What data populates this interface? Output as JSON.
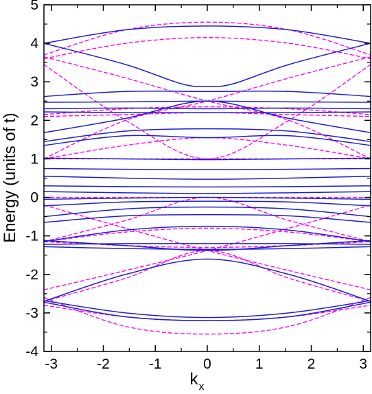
{
  "chart_data": {
    "type": "line",
    "xlabel": "k",
    "xlabel_subscript": "x",
    "ylabel": "Energy  (units of t)",
    "xlim": [
      -3.14159,
      3.14159
    ],
    "ylim": [
      -4,
      5
    ],
    "x_ticks": [
      -3,
      -2,
      -1,
      0,
      1,
      2,
      3
    ],
    "y_ticks": [
      -4,
      -3,
      -2,
      -1,
      0,
      1,
      2,
      3,
      4,
      5
    ],
    "x_tick_labels": [
      "-3",
      "-2",
      "-1",
      "0",
      "1",
      "2",
      "3"
    ],
    "y_tick_labels": [
      "-4",
      "-3",
      "-2",
      "-1",
      "0",
      "1",
      "2",
      "3",
      "4",
      "5"
    ],
    "grid": false,
    "legend": null,
    "colors": {
      "solid": "#1f1fcf",
      "dashed": "#ff00ff"
    },
    "series": [
      {
        "style": "solid",
        "color": "#1f1fcf",
        "x": [
          -3.14159,
          -1.5708,
          0,
          1.5708,
          3.14159
        ],
        "values": [
          4.0,
          4.35,
          4.45,
          4.35,
          4.0
        ]
      },
      {
        "style": "solid",
        "color": "#1f1fcf",
        "x": [
          -3.14159,
          -1.5708,
          -0.5,
          0,
          0.5,
          1.5708,
          3.14159
        ],
        "values": [
          4.0,
          3.45,
          2.95,
          2.88,
          2.95,
          3.45,
          4.0
        ]
      },
      {
        "style": "solid",
        "color": "#1f1fcf",
        "x": [
          -3.14159,
          -1.5708,
          0,
          1.5708,
          3.14159
        ],
        "values": [
          2.62,
          2.75,
          2.75,
          2.75,
          2.62
        ]
      },
      {
        "style": "solid",
        "color": "#1f1fcf",
        "x": [
          -3.14159,
          -1.5708,
          0,
          1.5708,
          3.14159
        ],
        "values": [
          2.47,
          2.48,
          2.5,
          2.48,
          2.47
        ]
      },
      {
        "style": "solid",
        "color": "#1f1fcf",
        "x": [
          -3.14159,
          -1.5708,
          0,
          1.5708,
          3.14159
        ],
        "values": [
          2.3,
          2.32,
          2.3,
          2.32,
          2.3
        ]
      },
      {
        "style": "solid",
        "color": "#1f1fcf",
        "x": [
          -3.14159,
          -1.5708,
          0,
          1.5708,
          3.14159
        ],
        "values": [
          2.22,
          2.2,
          2.2,
          2.2,
          2.22
        ]
      },
      {
        "style": "solid",
        "color": "#1f1fcf",
        "x": [
          -3.14159,
          -1.5708,
          0,
          1.5708,
          3.14159
        ],
        "values": [
          1.68,
          2.05,
          2.5,
          2.05,
          1.68
        ]
      },
      {
        "style": "solid",
        "color": "#1f1fcf",
        "x": [
          -3.14159,
          -1.5708,
          0,
          1.5708,
          3.14159
        ],
        "values": [
          1.45,
          1.72,
          1.78,
          1.72,
          1.45
        ]
      },
      {
        "style": "solid",
        "color": "#1f1fcf",
        "x": [
          -3.14159,
          -1.5708,
          0,
          1.5708,
          3.14159
        ],
        "values": [
          1.35,
          1.6,
          1.55,
          1.6,
          1.35
        ]
      },
      {
        "style": "solid",
        "color": "#1f1fcf",
        "x": [
          -3.14159,
          -1.5708,
          0,
          1.5708,
          3.14159
        ],
        "values": [
          1.02,
          1.0,
          0.98,
          1.0,
          1.02
        ]
      },
      {
        "style": "solid",
        "color": "#1f1fcf",
        "x": [
          -3.14159,
          -1.5708,
          0,
          1.5708,
          3.14159
        ],
        "values": [
          0.75,
          0.73,
          0.72,
          0.73,
          0.75
        ]
      },
      {
        "style": "solid",
        "color": "#1f1fcf",
        "x": [
          -3.14159,
          -1.5708,
          0,
          1.5708,
          3.14159
        ],
        "values": [
          0.55,
          0.5,
          0.47,
          0.5,
          0.55
        ]
      },
      {
        "style": "solid",
        "color": "#1f1fcf",
        "x": [
          -3.14159,
          -1.5708,
          0,
          1.5708,
          3.14159
        ],
        "values": [
          0.3,
          0.28,
          0.27,
          0.28,
          0.3
        ]
      },
      {
        "style": "solid",
        "color": "#1f1fcf",
        "x": [
          -3.14159,
          -1.5708,
          0,
          1.5708,
          3.14159
        ],
        "values": [
          0.15,
          0.12,
          0.1,
          0.12,
          0.15
        ]
      },
      {
        "style": "solid",
        "color": "#1f1fcf",
        "x": [
          -3.14159,
          -1.5708,
          0,
          1.5708,
          3.14159
        ],
        "values": [
          -0.05,
          -0.02,
          0.0,
          -0.02,
          -0.05
        ]
      },
      {
        "style": "solid",
        "color": "#1f1fcf",
        "x": [
          -3.14159,
          -1.5708,
          0,
          1.5708,
          3.14159
        ],
        "values": [
          -0.22,
          -0.12,
          -0.1,
          -0.12,
          -0.22
        ]
      },
      {
        "style": "solid",
        "color": "#1f1fcf",
        "x": [
          -3.14159,
          -1.5708,
          0,
          1.5708,
          3.14159
        ],
        "values": [
          -0.5,
          -0.3,
          -0.25,
          -0.3,
          -0.5
        ]
      },
      {
        "style": "solid",
        "color": "#1f1fcf",
        "x": [
          -3.14159,
          -1.5708,
          0,
          1.5708,
          3.14159
        ],
        "values": [
          -0.65,
          -0.48,
          -0.45,
          -0.48,
          -0.65
        ]
      },
      {
        "style": "solid",
        "color": "#1f1fcf",
        "x": [
          -3.14159,
          -1.5708,
          0,
          1.5708,
          3.14159
        ],
        "values": [
          -1.15,
          -0.85,
          -0.75,
          -0.85,
          -1.15
        ]
      },
      {
        "style": "solid",
        "color": "#1f1fcf",
        "x": [
          -3.14159,
          -1.5708,
          0,
          1.5708,
          3.14159
        ],
        "values": [
          -1.12,
          -1.25,
          -1.38,
          -1.25,
          -1.12
        ]
      },
      {
        "style": "solid",
        "color": "#1f1fcf",
        "x": [
          -3.14159,
          -1.5708,
          0,
          1.5708,
          3.14159
        ],
        "values": [
          -1.22,
          -1.2,
          -1.2,
          -1.2,
          -1.22
        ]
      },
      {
        "style": "solid",
        "color": "#1f1fcf",
        "x": [
          -3.14159,
          -1.5708,
          0,
          1.5708,
          3.14159
        ],
        "values": [
          -1.28,
          -1.33,
          -1.35,
          -1.33,
          -1.28
        ]
      },
      {
        "style": "solid",
        "color": "#1f1fcf",
        "x": [
          -3.14159,
          -1.5708,
          0,
          1.5708,
          3.14159
        ],
        "values": [
          -2.7,
          -2.0,
          -1.6,
          -2.0,
          -2.7
        ]
      },
      {
        "style": "solid",
        "color": "#1f1fcf",
        "x": [
          -3.14159,
          -1.5708,
          0,
          1.5708,
          3.14159
        ],
        "values": [
          -2.68,
          -3.0,
          -3.12,
          -3.0,
          -2.68
        ]
      },
      {
        "style": "solid",
        "color": "#1f1fcf",
        "x": [
          -3.14159,
          -1.5708,
          0,
          1.5708,
          3.14159
        ],
        "values": [
          -2.72,
          -3.1,
          -3.2,
          -3.1,
          -2.72
        ]
      },
      {
        "style": "dashed",
        "color": "#ff00ff",
        "x": [
          -3.14159,
          -1.5708,
          0,
          1.5708,
          3.14159
        ],
        "values": [
          3.7,
          4.35,
          4.55,
          4.35,
          3.7
        ]
      },
      {
        "style": "dashed",
        "color": "#ff00ff",
        "x": [
          -3.14159,
          -1.5708,
          0,
          1.5708,
          3.14159
        ],
        "values": [
          3.6,
          4.0,
          4.15,
          4.0,
          3.6
        ]
      },
      {
        "style": "dashed",
        "color": "#ff00ff",
        "x": [
          -3.14159,
          -1.5708,
          0,
          1.5708,
          3.14159
        ],
        "values": [
          3.45,
          2.0,
          1.0,
          2.0,
          3.45
        ]
      },
      {
        "style": "dashed",
        "color": "#ff00ff",
        "x": [
          -3.14159,
          -1.5708,
          0,
          1.5708,
          3.14159
        ],
        "values": [
          3.65,
          3.1,
          2.5,
          2.0,
          1.0
        ]
      },
      {
        "style": "dashed",
        "color": "#ff00ff",
        "x": [
          -3.14159,
          -1.5708,
          0,
          1.5708,
          3.14159
        ],
        "values": [
          1.0,
          2.0,
          2.5,
          3.1,
          3.65
        ]
      },
      {
        "style": "dashed",
        "color": "#ff00ff",
        "x": [
          -3.14159,
          -1.5708,
          0,
          1.5708,
          3.14159
        ],
        "values": [
          2.15,
          2.3,
          2.35,
          2.3,
          2.15
        ]
      },
      {
        "style": "dashed",
        "color": "#ff00ff",
        "x": [
          -3.14159,
          -1.5708,
          0,
          1.5708,
          3.14159
        ],
        "values": [
          2.1,
          2.15,
          2.2,
          2.15,
          2.1
        ]
      },
      {
        "style": "dashed",
        "color": "#ff00ff",
        "x": [
          -3.14159,
          -1.5708,
          0,
          1.5708,
          3.14159
        ],
        "values": [
          1.0,
          1.35,
          1.55,
          1.35,
          1.0
        ]
      },
      {
        "style": "dashed",
        "color": "#ff00ff",
        "x": [
          -3.14159,
          -1.5708,
          0,
          1.5708,
          3.14159
        ],
        "values": [
          1.0,
          1.0,
          1.0,
          1.0,
          1.0
        ]
      },
      {
        "style": "dashed",
        "color": "#ff00ff",
        "x": [
          -3.14159,
          -1.5708,
          0,
          1.5708,
          3.14159
        ],
        "values": [
          0.0,
          0.0,
          0.0,
          0.0,
          0.0
        ]
      },
      {
        "style": "dashed",
        "color": "#ff00ff",
        "x": [
          -3.14159,
          -1.5708,
          0,
          1.5708,
          3.14159
        ],
        "values": [
          -1.15,
          -0.6,
          0.0,
          -0.6,
          -1.15
        ]
      },
      {
        "style": "dashed",
        "color": "#ff00ff",
        "x": [
          -3.14159,
          -1.5708,
          0,
          1.5708,
          3.14159
        ],
        "values": [
          -1.15,
          -0.9,
          -0.8,
          -0.9,
          -1.15
        ]
      },
      {
        "style": "dashed",
        "color": "#ff00ff",
        "x": [
          -3.14159,
          -1.5708,
          0,
          1.5708,
          3.14159
        ],
        "values": [
          -1.15,
          -1.25,
          -1.3,
          -1.25,
          -1.15
        ]
      },
      {
        "style": "dashed",
        "color": "#ff00ff",
        "x": [
          -3.14159,
          -1.5708,
          0,
          1.5708,
          3.14159
        ],
        "values": [
          -2.4,
          -1.9,
          -1.38,
          -0.8,
          -0.2
        ]
      },
      {
        "style": "dashed",
        "color": "#ff00ff",
        "x": [
          -3.14159,
          -1.5708,
          0,
          1.5708,
          3.14159
        ],
        "values": [
          -0.2,
          -0.8,
          -1.38,
          -1.9,
          -2.4
        ]
      },
      {
        "style": "dashed",
        "color": "#ff00ff",
        "x": [
          -3.14159,
          -1.5708,
          0,
          1.5708,
          3.14159
        ],
        "values": [
          -2.7,
          -2.1,
          -1.38,
          -2.1,
          -2.7
        ]
      },
      {
        "style": "dashed",
        "color": "#ff00ff",
        "x": [
          -3.14159,
          -1.5708,
          0,
          1.5708,
          3.14159
        ],
        "values": [
          -2.8,
          -3.1,
          -3.2,
          -3.1,
          -2.8
        ]
      },
      {
        "style": "dashed",
        "color": "#ff00ff",
        "x": [
          -3.14159,
          -1.5708,
          0,
          1.5708,
          3.14159
        ],
        "values": [
          -2.6,
          -3.35,
          -3.55,
          -3.35,
          -2.6
        ]
      }
    ]
  }
}
